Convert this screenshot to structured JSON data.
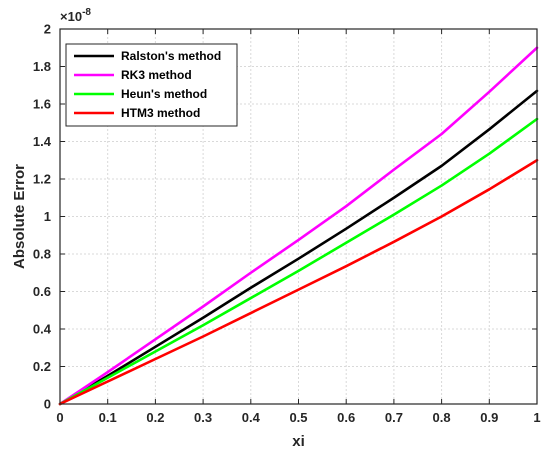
{
  "chart_data": {
    "type": "line",
    "title": "",
    "xlabel": "xi",
    "ylabel": "Absolute Error",
    "xlim": [
      0,
      1
    ],
    "ylim": [
      0,
      2
    ],
    "y_exponent_label": "×10",
    "y_exponent": "-8",
    "x_ticks": [
      "0",
      "0.1",
      "0.2",
      "0.3",
      "0.4",
      "0.5",
      "0.6",
      "0.7",
      "0.8",
      "0.9",
      "1"
    ],
    "y_ticks": [
      "0",
      "0.2",
      "0.4",
      "0.6",
      "0.8",
      "1",
      "1.2",
      "1.4",
      "1.6",
      "1.8",
      "2"
    ],
    "grid": true,
    "legend_position": "top-left",
    "x": [
      0,
      0.1,
      0.2,
      0.3,
      0.4,
      0.5,
      0.6,
      0.7,
      0.8,
      0.9,
      1.0
    ],
    "series": [
      {
        "name": "Ralston's method",
        "color": "#000000",
        "values": [
          0,
          0.15,
          0.305,
          0.46,
          0.62,
          0.775,
          0.935,
          1.1,
          1.27,
          1.465,
          1.67
        ]
      },
      {
        "name": "RK3 method",
        "color": "#ff00ff",
        "values": [
          0,
          0.17,
          0.345,
          0.52,
          0.7,
          0.875,
          1.055,
          1.25,
          1.44,
          1.665,
          1.9
        ]
      },
      {
        "name": "Heun's method",
        "color": "#00ff00",
        "values": [
          0,
          0.14,
          0.28,
          0.42,
          0.565,
          0.71,
          0.86,
          1.01,
          1.165,
          1.335,
          1.52
        ]
      },
      {
        "name": "HTM3 method",
        "color": "#ff0000",
        "values": [
          0,
          0.12,
          0.24,
          0.36,
          0.485,
          0.61,
          0.735,
          0.865,
          1.0,
          1.145,
          1.3
        ]
      }
    ]
  }
}
